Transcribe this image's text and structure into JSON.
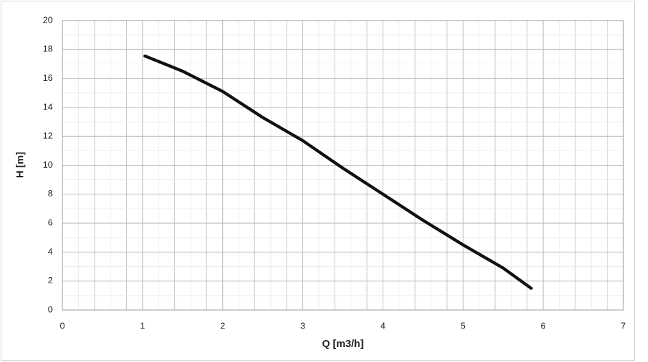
{
  "chart_data": {
    "type": "line",
    "xlabel": "Q [m3/h]",
    "ylabel": "H [m]",
    "x": [
      1.03,
      1.5,
      2.0,
      2.5,
      3.0,
      3.5,
      4.0,
      4.5,
      5.0,
      5.5,
      5.85
    ],
    "series": [
      {
        "name": "H",
        "color": "#111111",
        "values": [
          17.55,
          16.5,
          15.1,
          13.3,
          11.7,
          9.8,
          8.0,
          6.2,
          4.5,
          2.9,
          1.5
        ]
      }
    ],
    "xlim": [
      0,
      7
    ],
    "xticks": [
      0,
      1,
      2,
      3,
      4,
      5,
      6,
      7
    ],
    "ylim": [
      0,
      20
    ],
    "yticks": [
      0,
      2,
      4,
      6,
      8,
      10,
      12,
      14,
      16,
      18,
      20
    ],
    "grid": true
  }
}
